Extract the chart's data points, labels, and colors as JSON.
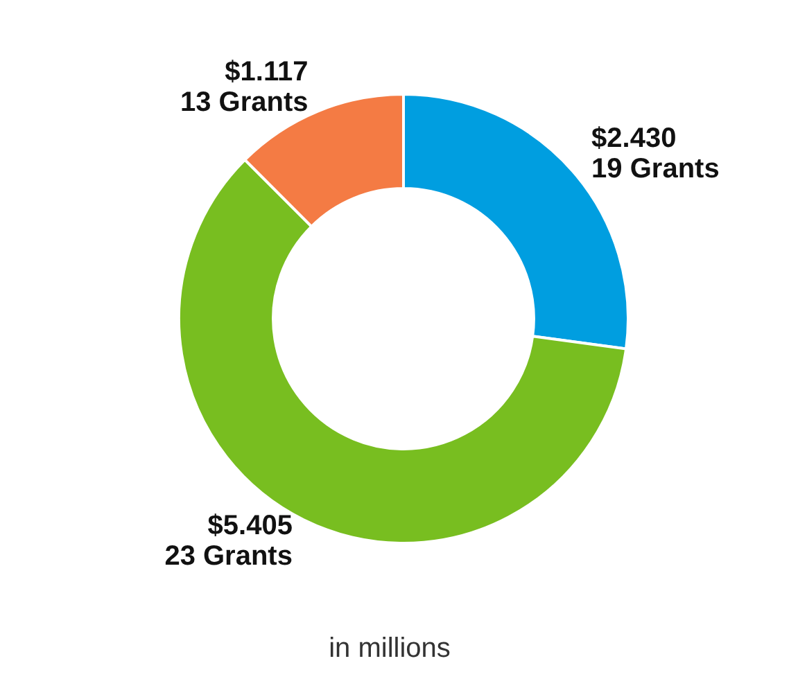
{
  "chart_data": {
    "type": "donut",
    "categories": [
      "19 Grants",
      "23 Grants",
      "13 Grants"
    ],
    "values": [
      2.43,
      5.405,
      1.117
    ],
    "value_labels": [
      "$2.430",
      "$5.405",
      "$1.117"
    ],
    "colors": [
      "#009ee0",
      "#78be20",
      "#f47b44"
    ],
    "legend": false,
    "annotations": [
      "in millions"
    ]
  }
}
